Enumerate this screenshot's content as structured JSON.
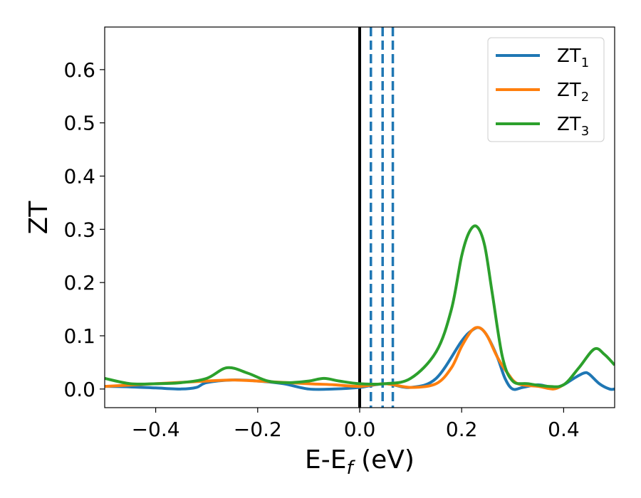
{
  "chart_data": {
    "type": "line",
    "xlabel": {
      "main": "E-E",
      "sub": "f",
      "suffix": " (eV)"
    },
    "ylabel": "ZT",
    "xlim": [
      -0.5,
      0.5
    ],
    "ylim": [
      -0.035,
      0.68
    ],
    "xticks": [
      -0.4,
      -0.2,
      0.0,
      0.2,
      0.4
    ],
    "xtick_labels": [
      "−0.4",
      "−0.2",
      "0.0",
      "0.2",
      "0.4"
    ],
    "yticks": [
      0.0,
      0.1,
      0.2,
      0.3,
      0.4,
      0.5,
      0.6
    ],
    "ytick_labels": [
      "0.0",
      "0.1",
      "0.2",
      "0.3",
      "0.4",
      "0.5",
      "0.6"
    ],
    "grid": false,
    "legend_position": "top-right",
    "vertical_lines": [
      {
        "x": 0.0,
        "color": "#000000",
        "style": "solid"
      },
      {
        "x": 0.022,
        "color": "#1f77b4",
        "style": "dashed"
      },
      {
        "x": 0.045,
        "color": "#1f77b4",
        "style": "dashed"
      },
      {
        "x": 0.065,
        "color": "#1f77b4",
        "style": "dashed"
      }
    ],
    "series": [
      {
        "name": "ZT",
        "name_sub": "1",
        "color": "#1f77b4",
        "x": [
          -0.5,
          -0.45,
          -0.4,
          -0.35,
          -0.32,
          -0.3,
          -0.25,
          -0.2,
          -0.15,
          -0.1,
          -0.05,
          0.0,
          0.05,
          0.1,
          0.15,
          0.2,
          0.22,
          0.235,
          0.25,
          0.27,
          0.285,
          0.3,
          0.32,
          0.35,
          0.38,
          0.4,
          0.42,
          0.44,
          0.45,
          0.47,
          0.49,
          0.5
        ],
        "y": [
          0.005,
          0.004,
          0.002,
          0.0,
          0.003,
          0.012,
          0.017,
          0.015,
          0.01,
          0.0,
          0.0,
          0.003,
          0.01,
          0.003,
          0.02,
          0.09,
          0.11,
          0.115,
          0.1,
          0.06,
          0.02,
          0.0,
          0.003,
          0.008,
          0.003,
          0.008,
          0.02,
          0.03,
          0.028,
          0.01,
          0.0,
          0.0
        ]
      },
      {
        "name": "ZT",
        "name_sub": "2",
        "color": "#ff7f0e",
        "x": [
          -0.5,
          -0.4,
          -0.3,
          -0.25,
          -0.2,
          -0.1,
          -0.05,
          0.0,
          0.05,
          0.1,
          0.15,
          0.18,
          0.2,
          0.22,
          0.235,
          0.25,
          0.27,
          0.29,
          0.31,
          0.35,
          0.38,
          0.4
        ],
        "y": [
          0.005,
          0.01,
          0.015,
          0.017,
          0.015,
          0.01,
          0.008,
          0.005,
          0.01,
          0.003,
          0.01,
          0.04,
          0.08,
          0.11,
          0.115,
          0.1,
          0.06,
          0.03,
          0.01,
          0.005,
          0.0,
          0.008
        ]
      },
      {
        "name": "ZT",
        "name_sub": "3",
        "color": "#2ca02c",
        "x": [
          -0.5,
          -0.45,
          -0.4,
          -0.35,
          -0.3,
          -0.26,
          -0.22,
          -0.18,
          -0.14,
          -0.1,
          -0.07,
          -0.04,
          0.0,
          0.05,
          0.1,
          0.15,
          0.18,
          0.2,
          0.215,
          0.23,
          0.245,
          0.26,
          0.28,
          0.3,
          0.33,
          0.37,
          0.4,
          0.43,
          0.46,
          0.48,
          0.5
        ],
        "y": [
          0.02,
          0.01,
          0.01,
          0.012,
          0.02,
          0.04,
          0.03,
          0.015,
          0.012,
          0.015,
          0.02,
          0.015,
          0.01,
          0.01,
          0.02,
          0.07,
          0.15,
          0.25,
          0.295,
          0.305,
          0.27,
          0.18,
          0.06,
          0.015,
          0.01,
          0.005,
          0.008,
          0.04,
          0.075,
          0.065,
          0.045
        ]
      }
    ]
  }
}
